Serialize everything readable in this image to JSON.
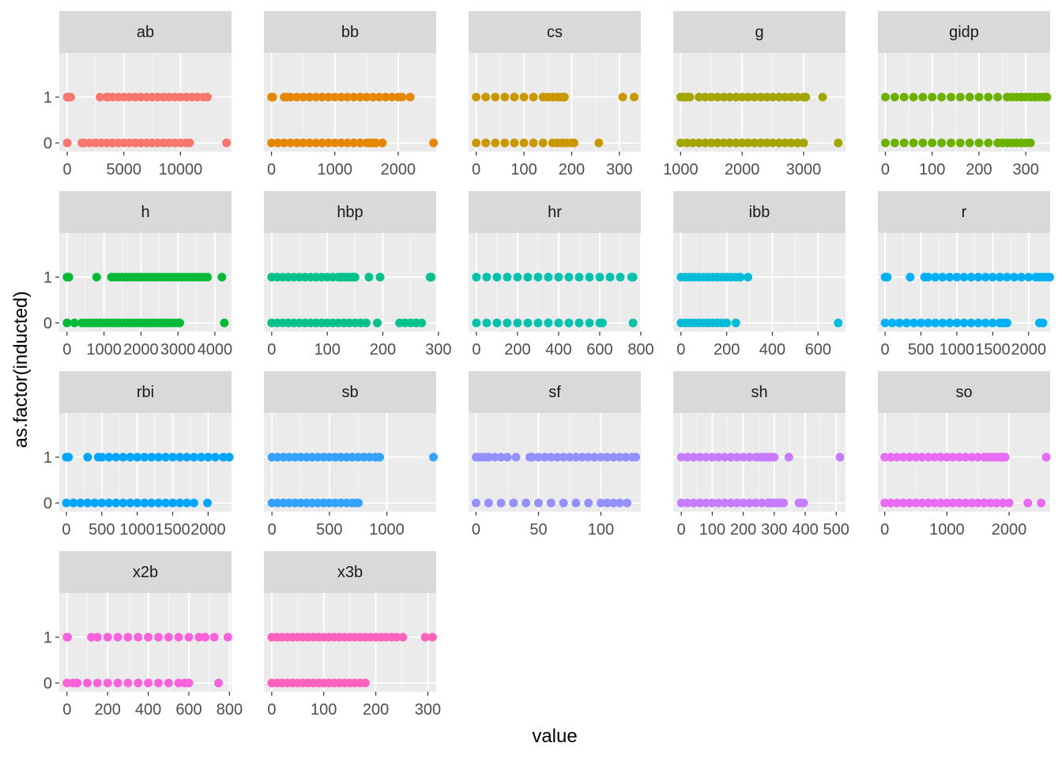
{
  "chart_data": {
    "type": "scatter",
    "facet": "wrap",
    "xlabel": "value",
    "ylabel": "as.factor(inducted)",
    "y_levels": [
      "0",
      "1"
    ],
    "background": "#ebebeb",
    "strip_background": "#d9d9d9",
    "grid": true,
    "legend": "none",
    "panels": [
      {
        "name": "ab",
        "color": "#F8766D",
        "xlim": [
          -700,
          14500
        ],
        "xticks": [
          0,
          5000,
          10000
        ],
        "tick_labels": [
          "0",
          "5000",
          "10000"
        ],
        "series": {
          "1": [
            0,
            50,
            100,
            150,
            200,
            250,
            300,
            2900,
            3500,
            3600,
            4000,
            4500,
            5000,
            5500,
            6000,
            6500,
            7000,
            7500,
            8000,
            8500,
            9000,
            9500,
            10000,
            10500,
            11000,
            11500,
            12000,
            12364
          ],
          "0": [
            0,
            1300,
            1500,
            2000,
            2500,
            3000,
            3500,
            4000,
            4500,
            5000,
            5500,
            6000,
            6500,
            7000,
            7500,
            8000,
            8500,
            9000,
            9500,
            10000,
            10500,
            10800,
            14053
          ]
        }
      },
      {
        "name": "bb",
        "color": "#E58700",
        "xlim": [
          -120,
          2600
        ],
        "xticks": [
          0,
          1000,
          2000
        ],
        "tick_labels": [
          "0",
          "1000",
          "2000"
        ],
        "series": {
          "1": [
            0,
            5,
            20,
            200,
            250,
            300,
            400,
            500,
            600,
            700,
            800,
            900,
            1000,
            1100,
            1200,
            1300,
            1400,
            1500,
            1600,
            1700,
            1800,
            1900,
            2000,
            2062,
            2190
          ],
          "0": [
            0,
            100,
            200,
            300,
            400,
            500,
            600,
            700,
            800,
            900,
            1000,
            1100,
            1200,
            1300,
            1400,
            1500,
            1550,
            1600,
            1650,
            1750,
            2558
          ]
        }
      },
      {
        "name": "cs",
        "color": "#C99800",
        "xlim": [
          -16,
          345
        ],
        "xticks": [
          0,
          100,
          200,
          300
        ],
        "tick_labels": [
          "0",
          "100",
          "200",
          "300"
        ],
        "series": {
          "1": [
            0,
            20,
            40,
            60,
            80,
            100,
            120,
            140,
            150,
            160,
            170,
            175,
            180,
            185,
            307,
            331
          ],
          "0": [
            0,
            20,
            40,
            60,
            80,
            100,
            120,
            140,
            160,
            170,
            180,
            190,
            200,
            205,
            257
          ]
        }
      },
      {
        "name": "g",
        "color": "#A3A500",
        "xlim": [
          880,
          3680
        ],
        "xticks": [
          1000,
          2000,
          3000
        ],
        "tick_labels": [
          "1000",
          "2000",
          "3000"
        ],
        "series": {
          "1": [
            1000,
            1050,
            1100,
            1150,
            1300,
            1400,
            1500,
            1600,
            1700,
            1800,
            1900,
            2000,
            2100,
            2200,
            2300,
            2400,
            2500,
            2600,
            2700,
            2800,
            2900,
            3000,
            3035,
            3308
          ],
          "0": [
            1000,
            1100,
            1200,
            1300,
            1400,
            1500,
            1600,
            1700,
            1800,
            1900,
            2000,
            2100,
            2200,
            2300,
            2400,
            2500,
            2600,
            2700,
            2800,
            2900,
            3000,
            3562
          ]
        }
      },
      {
        "name": "gidp",
        "color": "#6BB100",
        "xlim": [
          -16,
          352
        ],
        "xticks": [
          0,
          100,
          200,
          300
        ],
        "tick_labels": [
          "0",
          "100",
          "200",
          "300"
        ],
        "series": {
          "1": [
            0,
            20,
            40,
            60,
            80,
            100,
            120,
            140,
            160,
            180,
            200,
            220,
            240,
            260,
            270,
            280,
            290,
            300,
            310,
            320,
            330,
            340,
            345
          ],
          "0": [
            0,
            20,
            40,
            60,
            80,
            100,
            120,
            140,
            160,
            180,
            200,
            220,
            240,
            250,
            260,
            270,
            280,
            290,
            300,
            310
          ]
        }
      },
      {
        "name": "h",
        "color": "#00BA38",
        "xlim": [
          -210,
          4450
        ],
        "xticks": [
          0,
          1000,
          2000,
          3000,
          4000
        ],
        "tick_labels": [
          "0",
          "1000",
          "2000",
          "3000",
          "4000"
        ],
        "series": {
          "1": [
            0,
            20,
            50,
            800,
            1200,
            1300,
            1400,
            1500,
            1600,
            1700,
            1800,
            1900,
            2000,
            2100,
            2200,
            2300,
            2400,
            2500,
            2600,
            2700,
            2800,
            2900,
            3000,
            3100,
            3200,
            3300,
            3400,
            3500,
            3600,
            3700,
            3800,
            4189
          ],
          "0": [
            0,
            200,
            400,
            500,
            600,
            700,
            800,
            900,
            1000,
            1100,
            1200,
            1300,
            1400,
            1500,
            1600,
            1700,
            1800,
            1900,
            2000,
            2100,
            2200,
            2300,
            2400,
            2500,
            2600,
            2700,
            2800,
            2900,
            3000,
            3050,
            4256
          ]
        }
      },
      {
        "name": "hbp",
        "color": "#00C08B",
        "xlim": [
          -14,
          296
        ],
        "xticks": [
          0,
          100,
          200,
          300
        ],
        "tick_labels": [
          "0",
          "100",
          "200",
          "300"
        ],
        "series": {
          "1": [
            0,
            10,
            20,
            30,
            40,
            50,
            60,
            70,
            80,
            90,
            100,
            110,
            120,
            125,
            130,
            135,
            140,
            145,
            150,
            175,
            195,
            285,
            287
          ],
          "0": [
            0,
            10,
            20,
            30,
            40,
            50,
            60,
            70,
            80,
            90,
            100,
            110,
            120,
            130,
            140,
            150,
            160,
            170,
            190,
            230,
            240,
            250,
            260,
            270
          ]
        }
      },
      {
        "name": "hr",
        "color": "#00C1AA",
        "xlim": [
          -38,
          800
        ],
        "xticks": [
          0,
          200,
          400,
          600,
          800
        ],
        "tick_labels": [
          "0",
          "200",
          "400",
          "600",
          "800"
        ],
        "series": {
          "1": [
            0,
            50,
            100,
            150,
            200,
            250,
            300,
            350,
            400,
            450,
            500,
            550,
            600,
            650,
            700,
            755,
            762
          ],
          "0": [
            0,
            50,
            100,
            150,
            200,
            250,
            300,
            350,
            400,
            450,
            500,
            550,
            600,
            613,
            762
          ]
        }
      },
      {
        "name": "ibb",
        "color": "#00BCD8",
        "xlim": [
          -34,
          720
        ],
        "xticks": [
          0,
          200,
          400,
          600
        ],
        "tick_labels": [
          "0",
          "200",
          "400",
          "600"
        ],
        "series": {
          "1": [
            0,
            20,
            40,
            60,
            80,
            100,
            120,
            140,
            160,
            180,
            200,
            220,
            240,
            260,
            293
          ],
          "0": [
            0,
            20,
            40,
            60,
            80,
            100,
            120,
            140,
            160,
            180,
            200,
            240,
            688
          ]
        }
      },
      {
        "name": "r",
        "color": "#00B0F6",
        "xlim": [
          -100,
          2300
        ],
        "xticks": [
          0,
          500,
          1000,
          1500,
          2000
        ],
        "tick_labels": [
          "0",
          "500",
          "1000",
          "1500",
          "2000"
        ],
        "series": {
          "1": [
            0,
            30,
            350,
            550,
            600,
            700,
            800,
            900,
            1000,
            1100,
            1200,
            1300,
            1400,
            1500,
            1600,
            1700,
            1800,
            1900,
            2000,
            2100,
            2150,
            2200,
            2245,
            2295
          ],
          "0": [
            0,
            100,
            200,
            300,
            400,
            500,
            600,
            700,
            800,
            900,
            1000,
            1100,
            1200,
            1300,
            1400,
            1500,
            1600,
            1650,
            1700,
            2150,
            2200
          ]
        }
      },
      {
        "name": "rbi",
        "color": "#00A5FF",
        "xlim": [
          -100,
          2330
        ],
        "xticks": [
          0,
          500,
          1000,
          1500,
          2000
        ],
        "tick_labels": [
          "0",
          "500",
          "1000",
          "1500",
          "2000"
        ],
        "series": {
          "1": [
            0,
            30,
            300,
            450,
            500,
            600,
            700,
            800,
            900,
            1000,
            1100,
            1200,
            1300,
            1400,
            1500,
            1600,
            1700,
            1800,
            1900,
            2000,
            2100,
            2213,
            2297
          ],
          "0": [
            0,
            100,
            200,
            300,
            400,
            500,
            600,
            700,
            800,
            900,
            1000,
            1100,
            1200,
            1300,
            1400,
            1500,
            1600,
            1700,
            1800,
            1990
          ]
        }
      },
      {
        "name": "sb",
        "color": "#35A2FF",
        "xlim": [
          -70,
          1430
        ],
        "xticks": [
          0,
          500,
          1000
        ],
        "tick_labels": [
          "0",
          "500",
          "1000"
        ],
        "series": {
          "1": [
            0,
            50,
            100,
            150,
            200,
            250,
            300,
            350,
            400,
            450,
            500,
            550,
            600,
            650,
            700,
            750,
            800,
            850,
            900,
            938,
            1406
          ],
          "0": [
            0,
            50,
            100,
            150,
            200,
            250,
            300,
            350,
            400,
            450,
            500,
            550,
            600,
            650,
            700,
            738,
            752
          ]
        }
      },
      {
        "name": "sf",
        "color": "#9590FF",
        "xlim": [
          -6,
          132
        ],
        "xticks": [
          0,
          50,
          100
        ],
        "tick_labels": [
          "0",
          "50",
          "100"
        ],
        "series": {
          "1": [
            0,
            2,
            5,
            8,
            10,
            15,
            20,
            25,
            32,
            43,
            45,
            50,
            55,
            60,
            65,
            70,
            75,
            80,
            85,
            90,
            95,
            100,
            105,
            110,
            115,
            120,
            125,
            128
          ],
          "0": [
            0,
            10,
            20,
            30,
            40,
            50,
            60,
            70,
            80,
            90,
            100,
            105,
            110,
            115,
            121
          ]
        }
      },
      {
        "name": "sh",
        "color": "#C77CFF",
        "xlim": [
          -26,
          530
        ],
        "xticks": [
          0,
          100,
          200,
          300,
          400,
          500
        ],
        "tick_labels": [
          "0",
          "100",
          "200",
          "300",
          "400",
          "500"
        ],
        "series": {
          "1": [
            0,
            20,
            40,
            60,
            80,
            100,
            120,
            140,
            160,
            180,
            200,
            220,
            240,
            250,
            260,
            270,
            280,
            290,
            300,
            347,
            512
          ],
          "0": [
            0,
            20,
            40,
            60,
            80,
            100,
            120,
            140,
            160,
            180,
            200,
            220,
            240,
            260,
            280,
            290,
            300,
            310,
            320,
            330,
            380,
            390,
            395
          ]
        }
      },
      {
        "name": "so",
        "color": "#E76BF3",
        "xlim": [
          -110,
          2660
        ],
        "xticks": [
          0,
          1000,
          2000
        ],
        "tick_labels": [
          "0",
          "1000",
          "2000"
        ],
        "series": {
          "1": [
            0,
            100,
            200,
            300,
            400,
            500,
            600,
            700,
            800,
            900,
            1000,
            1100,
            1200,
            1300,
            1400,
            1500,
            1600,
            1650,
            1700,
            1750,
            1800,
            1850,
            1900,
            1936,
            2597
          ],
          "0": [
            0,
            100,
            200,
            300,
            400,
            500,
            600,
            700,
            800,
            900,
            1000,
            1100,
            1200,
            1300,
            1400,
            1500,
            1600,
            1700,
            1800,
            1900,
            2000,
            2300,
            2516
          ]
        }
      },
      {
        "name": "x2b",
        "color": "#FA62DB",
        "xlim": [
          -38,
          810
        ],
        "xticks": [
          0,
          200,
          400,
          600,
          800
        ],
        "tick_labels": [
          "0",
          "200",
          "400",
          "600",
          "800"
        ],
        "series": {
          "1": [
            0,
            3,
            120,
            150,
            200,
            250,
            300,
            350,
            400,
            450,
            500,
            550,
            600,
            650,
            680,
            725,
            792
          ],
          "0": [
            0,
            30,
            50,
            100,
            150,
            200,
            250,
            300,
            350,
            400,
            450,
            500,
            550,
            580,
            600,
            746
          ]
        }
      },
      {
        "name": "x3b",
        "color": "#FF62BC",
        "xlim": [
          -15,
          316
        ],
        "xticks": [
          0,
          100,
          200,
          300
        ],
        "tick_labels": [
          "0",
          "100",
          "200",
          "300"
        ],
        "series": {
          "1": [
            0,
            10,
            20,
            30,
            40,
            50,
            60,
            70,
            80,
            90,
            100,
            110,
            120,
            130,
            140,
            150,
            160,
            170,
            180,
            190,
            200,
            210,
            220,
            230,
            240,
            252,
            295,
            309
          ],
          "0": [
            0,
            10,
            20,
            30,
            40,
            50,
            60,
            70,
            80,
            90,
            100,
            110,
            120,
            130,
            140,
            150,
            160,
            170,
            180
          ]
        }
      }
    ]
  }
}
